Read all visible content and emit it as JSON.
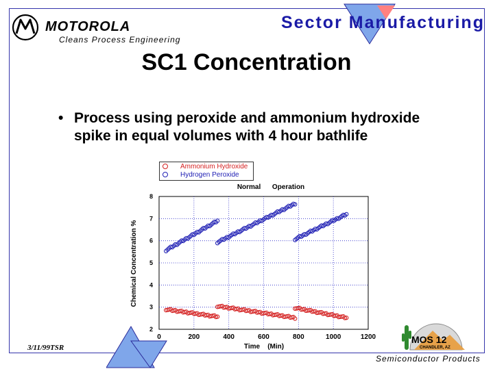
{
  "header": {
    "brand": "MOTOROLA",
    "department": "Cleans  Process  Engineering",
    "sector": "Sector Manufacturing"
  },
  "slide": {
    "title": "SC1 Concentration",
    "bullet": "Process using peroxide and ammonium hydroxide spike in equal volumes with 4 hour bathlife"
  },
  "footer": {
    "date": "3/11/99TSR",
    "division": "Semiconductor  Products",
    "mos_label": "MOS 12",
    "mos_sub": "CHANDLER, AZ"
  },
  "colors": {
    "ammonium": "#d42020",
    "peroxide": "#2020b4",
    "grid": "#2828c8",
    "sector_text": "#1a1aa6"
  },
  "chart_data": {
    "type": "scatter",
    "title": "Normal      Operation",
    "xlabel": "Time    (Min)",
    "ylabel": "Chemical Concentration %",
    "xlim": [
      0,
      1200
    ],
    "ylim": [
      2,
      8
    ],
    "xticks": [
      "0",
      "200",
      "400",
      "600",
      "800",
      "1000",
      "1200"
    ],
    "yticks": [
      "2",
      "3",
      "4",
      "5",
      "6",
      "7",
      "8"
    ],
    "grid": true,
    "legend_position": "top-left",
    "series": [
      {
        "name": "Ammonium Hydroxide",
        "color": "#d42020",
        "segments": [
          {
            "x_start": 40,
            "x_end": 335,
            "y_start": 2.9,
            "y_end": 2.57
          },
          {
            "x_start": 335,
            "x_end": 780,
            "y_start": 3.05,
            "y_end": 2.52
          },
          {
            "x_start": 780,
            "x_end": 1075,
            "y_start": 2.97,
            "y_end": 2.52
          }
        ]
      },
      {
        "name": "Hydrogen Peroxide",
        "color": "#2020b4",
        "segments": [
          {
            "x_start": 40,
            "x_end": 335,
            "y_start": 5.57,
            "y_end": 6.9
          },
          {
            "x_start": 335,
            "x_end": 780,
            "y_start": 5.93,
            "y_end": 7.68
          },
          {
            "x_start": 780,
            "x_end": 1075,
            "y_start": 6.07,
            "y_end": 7.2
          }
        ]
      }
    ]
  }
}
